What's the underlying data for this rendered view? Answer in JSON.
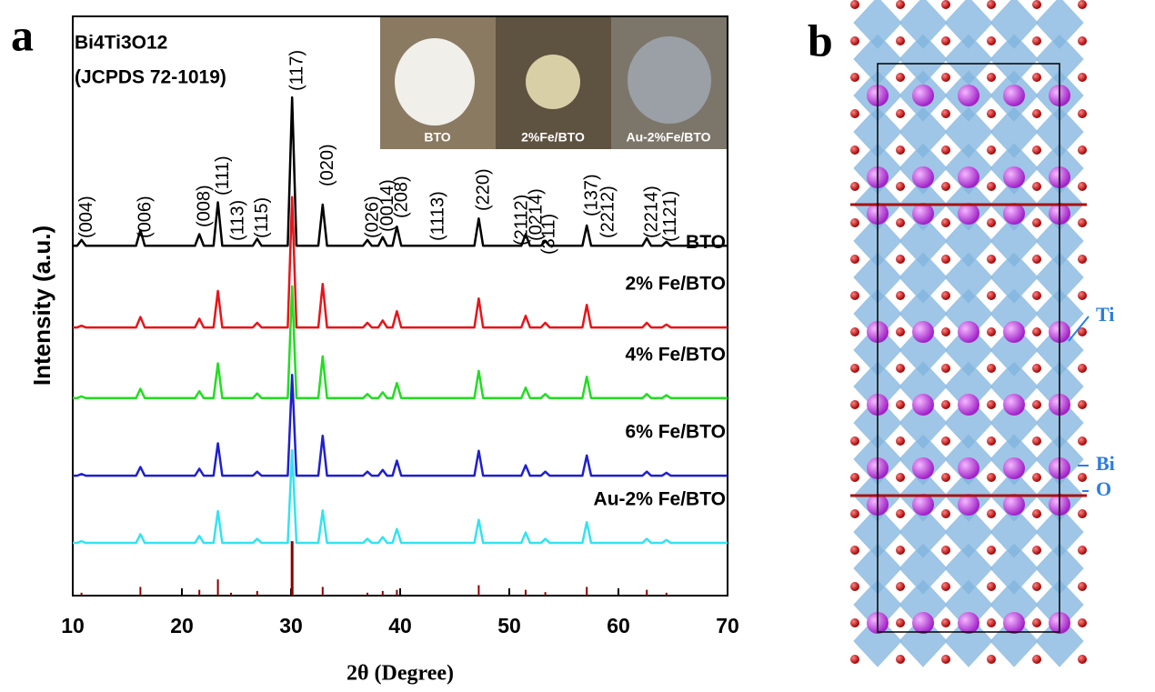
{
  "chart_data": {
    "type": "line",
    "panel_label": "a",
    "title_lines": [
      "Bi4Ti3O12",
      "(JCPDS 72-1019)"
    ],
    "x_label": "2θ (Degree)",
    "y_label": "Intensity (a.u.)",
    "xlim": [
      10,
      70
    ],
    "xticks": [
      10,
      20,
      30,
      40,
      50,
      60,
      70
    ],
    "ylim": [
      0,
      100
    ],
    "x": [
      10,
      10.4,
      10.8,
      11.2,
      15.8,
      16.2,
      16.6,
      21.2,
      21.6,
      22.0,
      22.9,
      23.3,
      23.7,
      26.5,
      26.9,
      27.3,
      29.7,
      30.1,
      30.5,
      32.5,
      32.9,
      33.3,
      36.6,
      37.0,
      37.4,
      38.0,
      38.4,
      38.8,
      39.3,
      39.7,
      40.1,
      46.8,
      47.2,
      47.6,
      51.1,
      51.5,
      51.9,
      52.9,
      53.3,
      53.7,
      56.7,
      57.1,
      57.5,
      62.2,
      62.6,
      63.0,
      64.0,
      64.4,
      64.8,
      70
    ],
    "series": [
      {
        "name": "BTO",
        "color": "#000000",
        "values": [
          60.4,
          60.4,
          61.4,
          60.4,
          60.4,
          63.1,
          60.4,
          60.4,
          62.4,
          60.4,
          60.4,
          67.9,
          60.4,
          60.4,
          61.6,
          60.4,
          60.4,
          86.0,
          60.4,
          60.4,
          67.5,
          60.4,
          60.4,
          61.4,
          60.4,
          60.4,
          61.9,
          60.4,
          60.4,
          63.7,
          60.4,
          60.4,
          65.1,
          60.4,
          60.4,
          62.4,
          60.4,
          60.4,
          61.2,
          60.4,
          60.4,
          63.9,
          60.4,
          60.4,
          61.7,
          60.4,
          60.4,
          61.1,
          60.4,
          60.4
        ]
      },
      {
        "name": "2% Fe/BTO",
        "color": "#e8141a",
        "values": [
          46.3,
          46.3,
          46.6,
          46.3,
          46.3,
          48.1,
          46.3,
          46.3,
          47.8,
          46.3,
          46.3,
          52.6,
          46.3,
          46.3,
          47.1,
          46.3,
          46.3,
          68.8,
          46.3,
          46.3,
          53.8,
          46.3,
          46.3,
          47.1,
          46.3,
          46.3,
          47.5,
          46.3,
          46.3,
          49.1,
          46.3,
          46.3,
          51.3,
          46.3,
          46.3,
          48.3,
          46.3,
          46.3,
          47.1,
          46.3,
          46.3,
          50.2,
          46.3,
          46.3,
          47.1,
          46.3,
          46.3,
          46.8,
          46.3,
          46.3
        ]
      },
      {
        "name": "4% Fe/BTO",
        "color": "#22dd22",
        "values": [
          34.1,
          34.1,
          34.4,
          34.1,
          34.1,
          35.7,
          34.1,
          34.1,
          35.3,
          34.1,
          34.1,
          40.1,
          34.1,
          34.1,
          34.9,
          34.1,
          34.1,
          53.4,
          34.1,
          34.1,
          41.3,
          34.1,
          34.1,
          34.8,
          34.1,
          34.1,
          35.1,
          34.1,
          34.1,
          36.7,
          34.1,
          34.1,
          38.8,
          34.1,
          34.1,
          35.9,
          34.1,
          34.1,
          34.8,
          34.1,
          34.1,
          37.8,
          34.1,
          34.1,
          34.8,
          34.1,
          34.1,
          34.6,
          34.1,
          34.1
        ]
      },
      {
        "name": "6% Fe/BTO",
        "color": "#1f1fd0",
        "values": [
          20.7,
          20.7,
          21.0,
          20.7,
          20.7,
          22.2,
          20.7,
          20.7,
          21.9,
          20.7,
          20.7,
          26.3,
          20.7,
          20.7,
          21.4,
          20.7,
          20.7,
          38.1,
          20.7,
          20.7,
          27.6,
          20.7,
          20.7,
          21.4,
          20.7,
          20.7,
          21.7,
          20.7,
          20.7,
          23.3,
          20.7,
          20.7,
          25.0,
          20.7,
          20.7,
          22.5,
          20.7,
          20.7,
          21.4,
          20.7,
          20.7,
          24.2,
          20.7,
          20.7,
          21.4,
          20.7,
          20.7,
          21.2,
          20.7,
          20.7
        ]
      },
      {
        "name": "Au-2% Fe/BTO",
        "color": "#33e3f0",
        "values": [
          9.1,
          9.1,
          9.4,
          9.1,
          9.1,
          10.6,
          9.1,
          9.1,
          10.3,
          9.1,
          9.1,
          14.6,
          9.1,
          9.1,
          9.8,
          9.1,
          9.1,
          25.1,
          9.1,
          9.1,
          14.7,
          9.1,
          9.1,
          9.8,
          9.1,
          9.1,
          10.1,
          9.1,
          9.1,
          11.5,
          9.1,
          9.1,
          13.1,
          9.1,
          9.1,
          10.9,
          9.1,
          9.1,
          9.8,
          9.1,
          9.1,
          12.7,
          9.1,
          9.1,
          9.8,
          9.1,
          9.1,
          9.6,
          9.1,
          9.1
        ]
      }
    ],
    "reference_sticks": {
      "color": "#8b0000",
      "x": [
        10.8,
        16.2,
        21.6,
        23.3,
        24.5,
        26.9,
        30.1,
        32.9,
        37.0,
        38.4,
        39.7,
        47.2,
        51.5,
        53.3,
        57.1,
        62.6,
        64.4
      ],
      "values": [
        0.5,
        1.5,
        1,
        2.8,
        0.5,
        0.8,
        9.4,
        1.5,
        0.5,
        0.8,
        1,
        1.8,
        1,
        0.6,
        1.5,
        1,
        0.5
      ]
    },
    "annotations": [
      {
        "text": "(004)",
        "x": 10.8
      },
      {
        "text": "(006)",
        "x": 16.2
      },
      {
        "text": "(008)",
        "x": 21.6
      },
      {
        "text": "(111)",
        "x": 23.3
      },
      {
        "text": "(113)",
        "x": 24.7
      },
      {
        "text": "(115)",
        "x": 26.9
      },
      {
        "text": "(117)",
        "x": 30.1
      },
      {
        "text": "(020)",
        "x": 32.9
      },
      {
        "text": "(026)",
        "x": 37.0
      },
      {
        "text": "(0014)",
        "x": 38.4
      },
      {
        "text": "(208)",
        "x": 39.7
      },
      {
        "text": "(1113)",
        "x": 43.0
      },
      {
        "text": "(220)",
        "x": 47.2
      },
      {
        "text": "(2112)",
        "x": 50.7
      },
      {
        "text": "(0214)",
        "x": 52.0
      },
      {
        "text": "(311)",
        "x": 53.2
      },
      {
        "text": "(137)",
        "x": 57.1
      },
      {
        "text": "(2212)",
        "x": 58.6
      },
      {
        "text": "(2214)",
        "x": 62.6
      },
      {
        "text": "(1121)",
        "x": 64.3
      }
    ],
    "photo_labels": [
      "BTO",
      "2%Fe/BTO",
      "Au-2%Fe/BTO"
    ]
  },
  "panel_b": {
    "panel_label": "b",
    "atoms": [
      "Ti",
      "Bi",
      "O"
    ]
  }
}
